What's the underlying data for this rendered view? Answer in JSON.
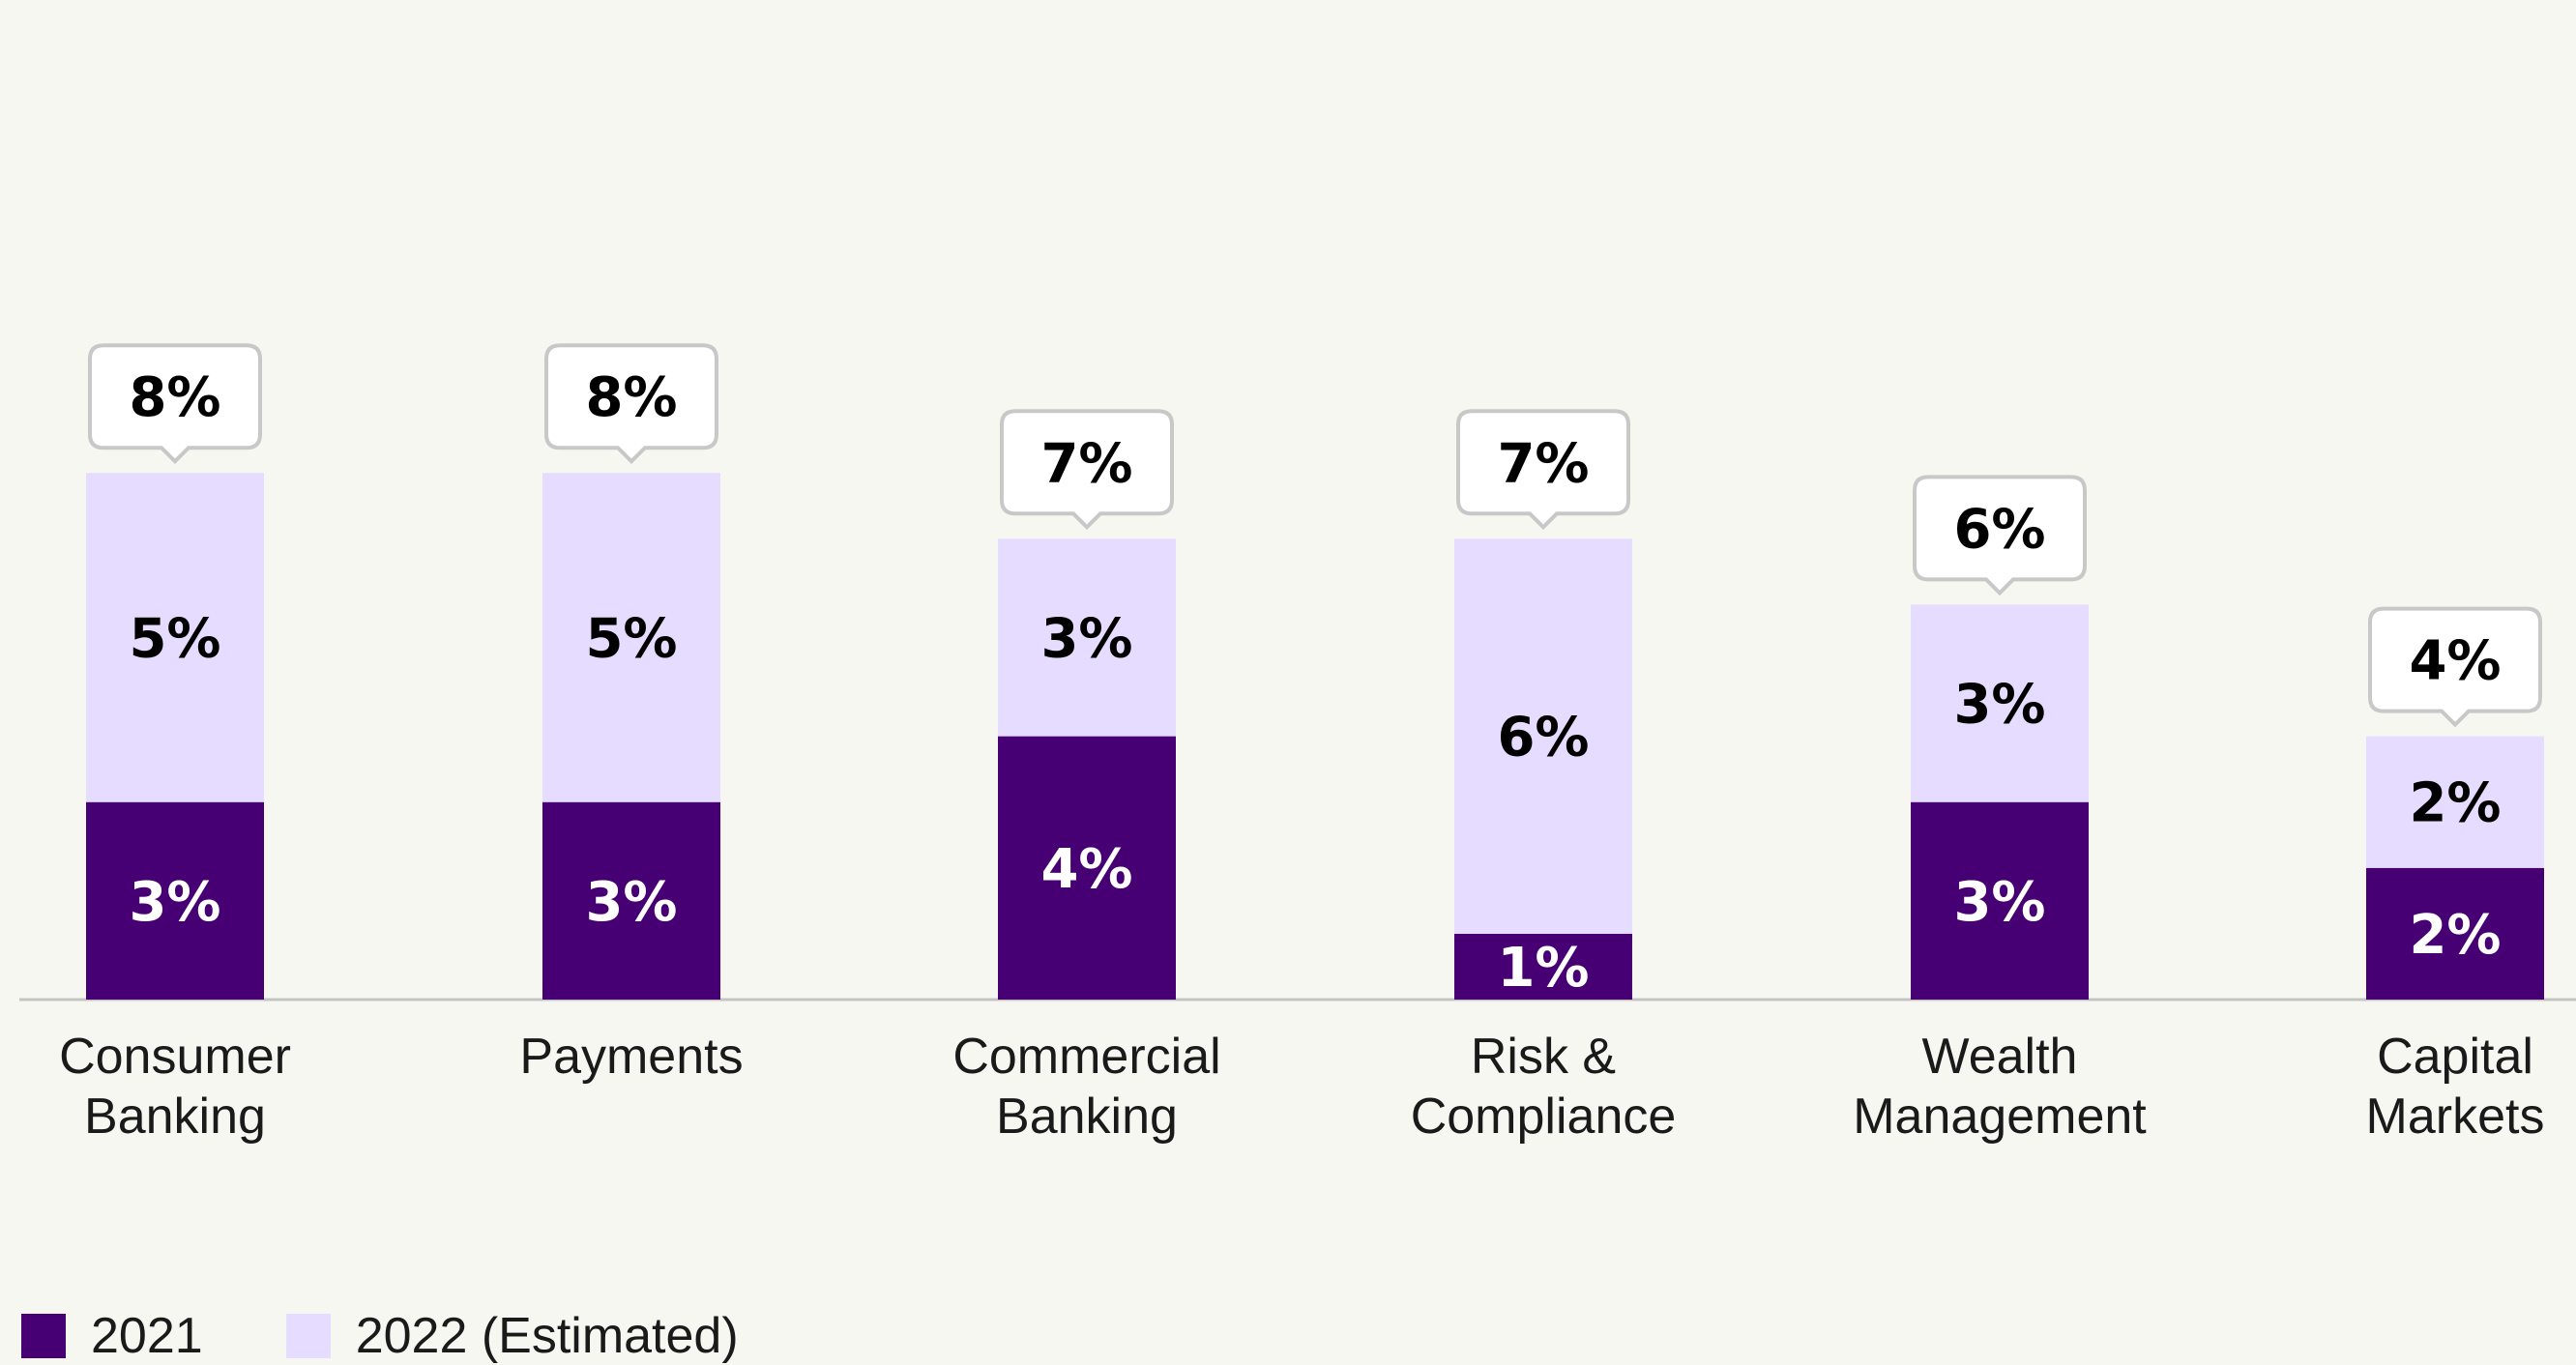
{
  "chart_data": {
    "type": "bar",
    "stacked": true,
    "categories": [
      [
        "Consumer",
        "Banking"
      ],
      [
        "Payments"
      ],
      [
        "Commercial",
        "Banking"
      ],
      [
        "Risk &",
        "Compliance"
      ],
      [
        "Wealth",
        "Management"
      ],
      [
        "Capital",
        "Markets"
      ]
    ],
    "series": [
      {
        "name": "2021",
        "color": "#460073",
        "values": [
          3,
          3,
          4,
          1,
          3,
          2
        ],
        "labels": [
          "3%",
          "3%",
          "4%",
          "1%",
          "3%",
          "2%"
        ]
      },
      {
        "name": "2022 (Estimated)",
        "color": "#e6dcff",
        "values": [
          5,
          5,
          3,
          6,
          3,
          2
        ],
        "labels": [
          "5%",
          "5%",
          "3%",
          "6%",
          "3%",
          "2%"
        ]
      }
    ],
    "totals": [
      8,
      8,
      7,
      7,
      6,
      4
    ],
    "total_labels": [
      "8%",
      "8%",
      "7%",
      "7%",
      "6%",
      "4%"
    ],
    "ylim": [
      0,
      8
    ],
    "grid": false,
    "legend_position": "bottom-left"
  },
  "legend": {
    "items": [
      {
        "label": "2021",
        "color": "#460073"
      },
      {
        "label": "2022 (Estimated)",
        "color": "#e6dcff"
      }
    ]
  }
}
